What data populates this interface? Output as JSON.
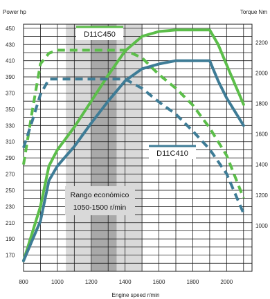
{
  "chart_data": {
    "type": "line",
    "left_axis_title": "Power hp",
    "right_axis_title": "Torque Nm",
    "x_axis_title": "Engine speed r/min",
    "xlim": [
      800,
      2150
    ],
    "ylim_left": [
      150,
      455
    ],
    "ylim_right": [
      700,
      2320
    ],
    "x_ticks": [
      800,
      1000,
      1200,
      1400,
      1600,
      1800,
      2000
    ],
    "y_left_ticks": [
      170,
      190,
      210,
      230,
      250,
      270,
      290,
      310,
      330,
      350,
      370,
      390,
      410,
      430,
      450
    ],
    "y_right_ticks": [
      1000,
      1200,
      1400,
      1600,
      1800,
      2000,
      2200
    ],
    "economic_range": {
      "label_line1": "Rango económico",
      "label_line2": "1050-1500 r/min",
      "outer_start": 1050,
      "outer_end": 1500,
      "inner_start": 1200,
      "inner_end": 1350
    },
    "series": [
      {
        "name": "D11C450",
        "type": "power",
        "axis": "left",
        "color": "#5cbe4a",
        "dashed": false,
        "points": [
          [
            800,
            163
          ],
          [
            900,
            230
          ],
          [
            950,
            280
          ],
          [
            1000,
            300
          ],
          [
            1100,
            328
          ],
          [
            1200,
            360
          ],
          [
            1300,
            392
          ],
          [
            1400,
            422
          ],
          [
            1500,
            440
          ],
          [
            1600,
            446
          ],
          [
            1700,
            448
          ],
          [
            1800,
            448
          ],
          [
            1900,
            448
          ],
          [
            1950,
            430
          ],
          [
            2000,
            405
          ],
          [
            2100,
            356
          ]
        ]
      },
      {
        "name": "D11C450",
        "type": "torque",
        "axis": "right",
        "color": "#5cbe4a",
        "dashed": true,
        "points": [
          [
            800,
            1400
          ],
          [
            850,
            1740
          ],
          [
            900,
            2060
          ],
          [
            950,
            2130
          ],
          [
            1000,
            2150
          ],
          [
            1100,
            2150
          ],
          [
            1200,
            2150
          ],
          [
            1300,
            2150
          ],
          [
            1400,
            2150
          ],
          [
            1500,
            2100
          ],
          [
            1600,
            1990
          ],
          [
            1700,
            1900
          ],
          [
            1800,
            1790
          ],
          [
            1900,
            1640
          ],
          [
            2000,
            1460
          ],
          [
            2100,
            1180
          ]
        ]
      },
      {
        "name": "D11C410",
        "type": "power",
        "axis": "left",
        "color": "#3e7c96",
        "dashed": false,
        "points": [
          [
            800,
            163
          ],
          [
            900,
            212
          ],
          [
            950,
            262
          ],
          [
            1000,
            280
          ],
          [
            1100,
            304
          ],
          [
            1200,
            333
          ],
          [
            1300,
            360
          ],
          [
            1400,
            385
          ],
          [
            1500,
            400
          ],
          [
            1600,
            406
          ],
          [
            1700,
            410
          ],
          [
            1800,
            410
          ],
          [
            1900,
            410
          ],
          [
            1950,
            385
          ],
          [
            2000,
            364
          ],
          [
            2100,
            330
          ]
        ]
      },
      {
        "name": "D11C410",
        "type": "torque",
        "axis": "right",
        "color": "#3e7c96",
        "dashed": true,
        "points": [
          [
            800,
            1510
          ],
          [
            850,
            1680
          ],
          [
            900,
            1860
          ],
          [
            950,
            1960
          ],
          [
            1000,
            1960
          ],
          [
            1100,
            1960
          ],
          [
            1200,
            1960
          ],
          [
            1300,
            1960
          ],
          [
            1400,
            1960
          ],
          [
            1500,
            1900
          ],
          [
            1600,
            1810
          ],
          [
            1700,
            1730
          ],
          [
            1800,
            1620
          ],
          [
            1900,
            1500
          ],
          [
            2000,
            1340
          ],
          [
            2100,
            1080
          ]
        ]
      }
    ],
    "labels": {
      "d11c450": "D11C450",
      "d11c410": "D11C410"
    },
    "colors": {
      "green": "#5cbe4a",
      "blue": "#3e7c96",
      "band_light": "#d9d9d9",
      "band_dark": "#a9a9a9"
    }
  }
}
